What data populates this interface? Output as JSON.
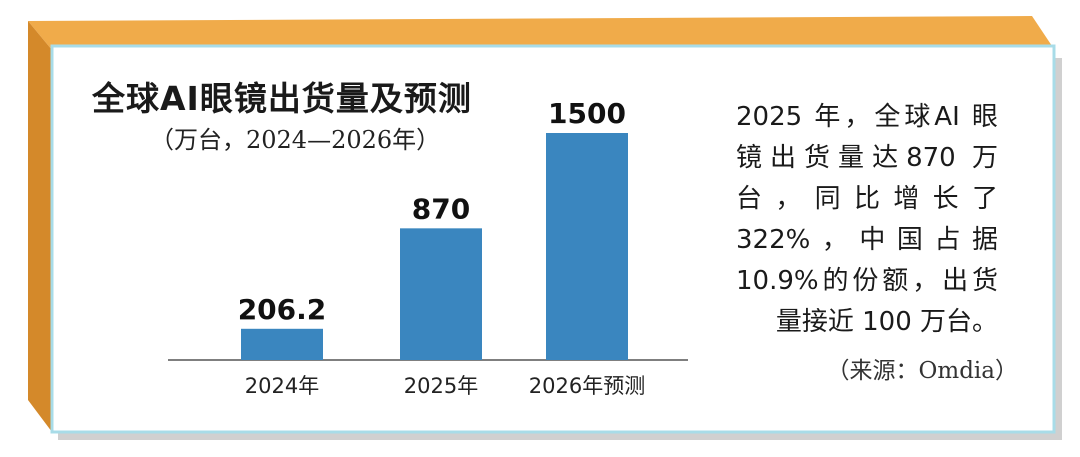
{
  "chart_data": {
    "type": "bar",
    "title": "全球AI眼镜出货量及预测",
    "subtitle": "（万台，2024—2026年）",
    "categories": [
      "2024年",
      "2025年",
      "2026年预测"
    ],
    "values": [
      206.2,
      870,
      1500
    ],
    "data_labels": [
      "206.2",
      "870",
      "1500"
    ],
    "ylim": [
      0,
      1500
    ],
    "grid": false,
    "bar_color": "#3a86bf"
  },
  "note": {
    "text": "2025 年，全球AI 眼镜出货量达870 万台，同比增长了 322%，中国占据10.9%的份额，出货量接近 100 万台。",
    "source": "（来源：Omdia）"
  },
  "colors": {
    "panel_border": "#a8dce8",
    "frame_top": "#f0ab4a",
    "frame_side": "#d4892a",
    "shadow": "#c8c8c8"
  }
}
